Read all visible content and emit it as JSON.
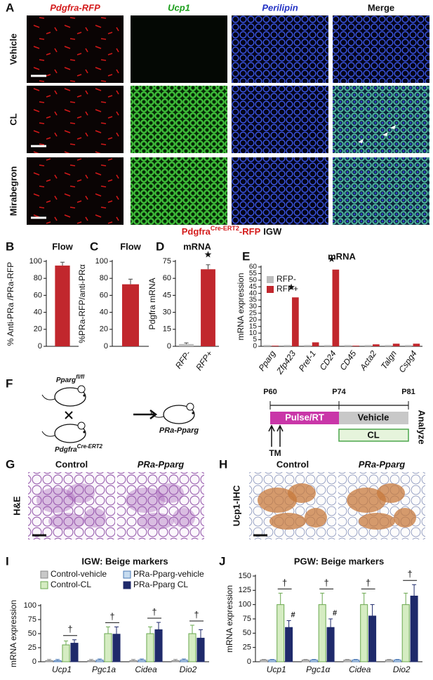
{
  "panel_a": {
    "label": "A",
    "columns": [
      "Pdgfra-RFP",
      "Ucp1",
      "Perilipin",
      "Merge"
    ],
    "rows": [
      "Vehicle",
      "CL",
      "Mirabegron"
    ],
    "caption": {
      "gene": "Pdgfra",
      "superscript": "Cre-ERT2",
      "suffix": "-RFP",
      "depot": "IGW"
    }
  },
  "chart_data": [
    {
      "type": "bar",
      "panel": "B",
      "title": "Flow",
      "ylabel": "% Anti-PRa /PRa-RFP",
      "values": [
        95
      ],
      "errors": [
        4
      ],
      "color": "#c1272d",
      "ylim": [
        0,
        100
      ],
      "yticks": [
        0,
        20,
        40,
        60,
        80,
        100
      ]
    },
    {
      "type": "bar",
      "panel": "C",
      "title": "Flow",
      "ylabel": "%PRa-RFP/anti-PRα",
      "values": [
        73
      ],
      "errors": [
        6
      ],
      "color": "#c1272d",
      "ylim": [
        0,
        100
      ],
      "yticks": [
        0,
        20,
        40,
        60,
        80,
        100
      ]
    },
    {
      "type": "bar",
      "panel": "D",
      "title": "mRNA",
      "ylabel": "Pdgfra mRNA",
      "categories": [
        "RFP-",
        "RFP+"
      ],
      "values": [
        2,
        68
      ],
      "errors": [
        1,
        4
      ],
      "colors": [
        "#bdbdbd",
        "#c1272d"
      ],
      "ylim": [
        0,
        75
      ],
      "yticks": [
        0,
        15,
        30,
        45,
        60,
        75
      ],
      "annotations": [
        {
          "text": "★",
          "category": "RFP+"
        }
      ]
    },
    {
      "type": "bar",
      "panel": "E",
      "title": "mRNA",
      "ylabel": "mRNA expression",
      "categories": [
        "Pparg",
        "Zfp423",
        "Pref-1",
        "CD24",
        "CD45",
        "Acta2",
        "Talgn",
        "Cspg4"
      ],
      "series": [
        {
          "name": "RFP-",
          "color": "#bdbdbd",
          "values": [
            1,
            1,
            1,
            1,
            1,
            1,
            1,
            1
          ]
        },
        {
          "name": "RFP+",
          "color": "#c1272d",
          "values": [
            0.5,
            37,
            3,
            58,
            0.5,
            1.5,
            2,
            2
          ]
        }
      ],
      "ylim": [
        0,
        60
      ],
      "yticks": [
        0,
        5,
        10,
        15,
        20,
        25,
        30,
        35,
        40,
        45,
        50,
        55,
        60
      ],
      "legend": "upper left",
      "annotations": [
        {
          "text": "★",
          "category": "Zfp423"
        },
        {
          "text": "★",
          "category": "CD24"
        }
      ]
    },
    {
      "type": "bar",
      "panel": "I",
      "title": "IGW: Beige markers",
      "ylabel": "mRNA expression",
      "categories": [
        "Ucp1",
        "Pgc1a",
        "Cidea",
        "Dio2"
      ],
      "series": [
        {
          "name": "Control-vehicle",
          "color": "#c8c8c8",
          "edgecolor": "#888888",
          "values": [
            2,
            2,
            2,
            2
          ],
          "errors": [
            2,
            2,
            2,
            2
          ]
        },
        {
          "name": "PRa-Pparg-vehicle",
          "color": "#c6dbef",
          "edgecolor": "#4a78b5",
          "values": [
            2,
            3,
            3,
            3
          ],
          "errors": [
            2,
            2,
            2,
            2
          ]
        },
        {
          "name": "Control-CL",
          "color": "#d5ecc2",
          "edgecolor": "#6aa84f",
          "values": [
            30,
            50,
            50,
            50
          ],
          "errors": [
            7,
            12,
            12,
            15
          ]
        },
        {
          "name": "PRa-Pparg CL",
          "color": "#1f2a6b",
          "edgecolor": "#1f2a6b",
          "values": [
            33,
            49,
            57,
            42
          ],
          "errors": [
            6,
            13,
            13,
            15
          ]
        }
      ],
      "ylim": [
        0,
        100
      ],
      "yticks": [
        0,
        25,
        50,
        75,
        100
      ],
      "legend": "top",
      "annotations": [
        {
          "text": "†",
          "category": "Ucp1"
        },
        {
          "text": "†",
          "category": "Pgc1a"
        },
        {
          "text": "†",
          "category": "Cidea"
        },
        {
          "text": "†",
          "category": "Dio2"
        }
      ]
    },
    {
      "type": "bar",
      "panel": "J",
      "title": "PGW: Beige markers",
      "ylabel": "mRNA expression",
      "categories": [
        "Ucp1",
        "Pgc1α",
        "Cidea",
        "Dio2"
      ],
      "series": [
        {
          "name": "Control-vehicle",
          "color": "#c8c8c8",
          "edgecolor": "#888888",
          "values": [
            3,
            3,
            3,
            3
          ],
          "errors": [
            1,
            1,
            1,
            1
          ]
        },
        {
          "name": "PRa-Pparg-vehicle",
          "color": "#c6dbef",
          "edgecolor": "#4a78b5",
          "values": [
            3,
            3,
            3,
            3
          ],
          "errors": [
            1,
            1,
            1,
            1
          ]
        },
        {
          "name": "Control-CL",
          "color": "#d5ecc2",
          "edgecolor": "#6aa84f",
          "values": [
            100,
            100,
            100,
            100
          ],
          "errors": [
            20,
            20,
            20,
            20
          ]
        },
        {
          "name": "PRa-Pparg CL",
          "color": "#1f2a6b",
          "edgecolor": "#1f2a6b",
          "values": [
            60,
            60,
            80,
            115
          ],
          "errors": [
            12,
            15,
            20,
            20
          ]
        }
      ],
      "ylim": [
        0,
        150
      ],
      "yticks": [
        0,
        25,
        50,
        75,
        100,
        125,
        150
      ],
      "annotations": [
        {
          "text": "†",
          "category": "Ucp1"
        },
        {
          "text": "†",
          "category": "Pgc1α"
        },
        {
          "text": "†",
          "category": "Cidea"
        },
        {
          "text": "†",
          "category": "Dio2"
        },
        {
          "text": "#",
          "category": "Ucp1",
          "series": "PRa-Pparg CL"
        },
        {
          "text": "#",
          "category": "Pgc1α",
          "series": "PRa-Pparg CL"
        }
      ]
    }
  ],
  "panel_f": {
    "label": "F",
    "mouse_1": {
      "name": "Pparg",
      "superscript": "fl/fl"
    },
    "mouse_2": {
      "name": "Pdgfra",
      "superscript": "Cre-ERT2"
    },
    "offspring": "PRa-Pparg",
    "timepoints": [
      "P60",
      "P74",
      "P81"
    ],
    "phases": {
      "pulse": "Pulse/RT",
      "vehicle": "Vehicle",
      "cl": "CL"
    },
    "injection": "TM",
    "endpoint": "Analyze"
  },
  "panel_g": {
    "label": "G",
    "columns": [
      "Control",
      "PRa-Pparg"
    ],
    "stain": "H&E"
  },
  "panel_h": {
    "label": "H",
    "columns": [
      "Control",
      "PRa-Pparg"
    ],
    "stain": "Ucp1-IHC"
  }
}
